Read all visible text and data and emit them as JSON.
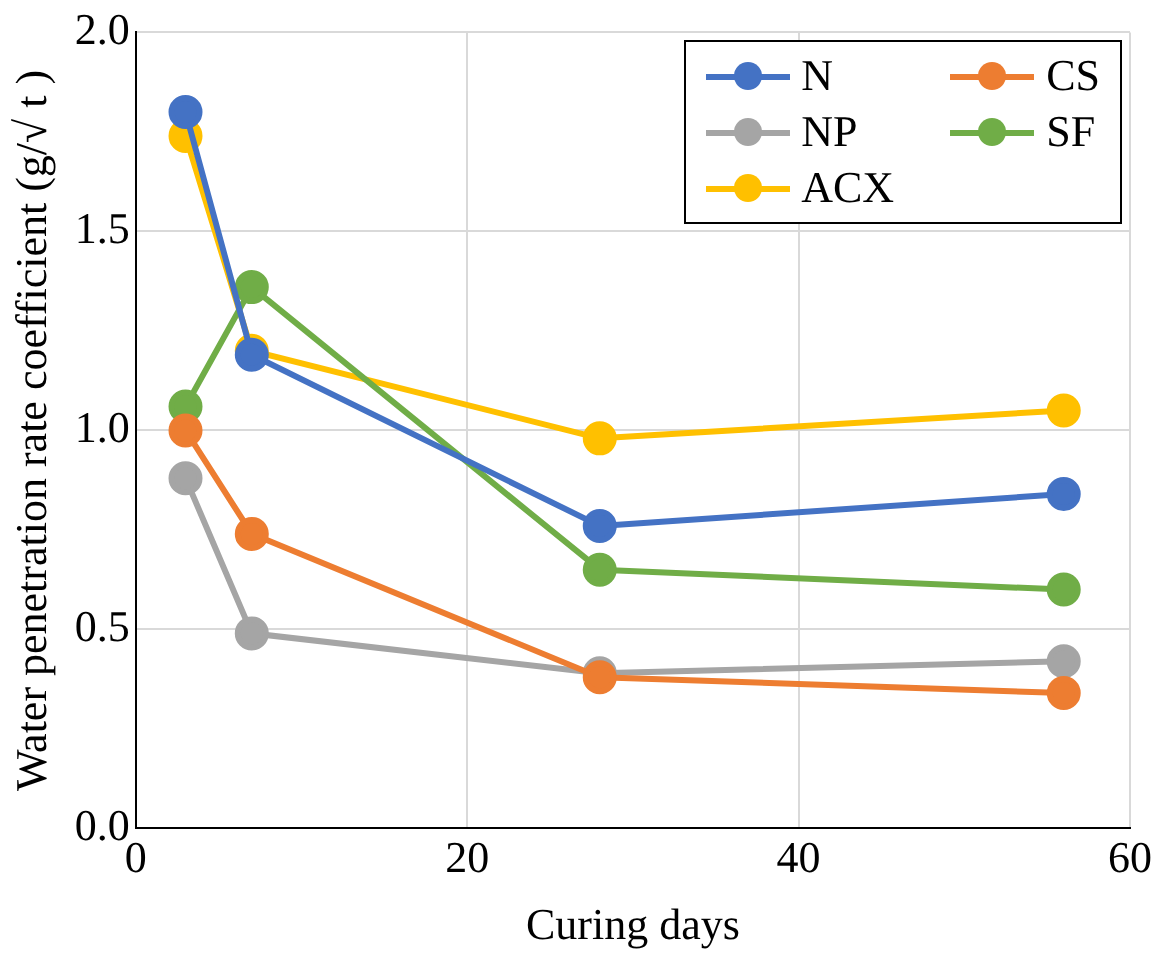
{
  "chart_data": {
    "type": "line",
    "xlabel": "Curing days",
    "ylabel": "Water penetration rate coefficient (g/√ t )",
    "x": [
      3,
      7,
      28,
      56
    ],
    "series": [
      {
        "name": "N",
        "color": "#4472c4",
        "values": [
          1.8,
          1.19,
          0.76,
          0.84
        ]
      },
      {
        "name": "CS",
        "color": "#ed7d31",
        "values": [
          1.0,
          0.74,
          0.38,
          0.34
        ]
      },
      {
        "name": "NP",
        "color": "#a5a5a5",
        "values": [
          0.88,
          0.49,
          0.39,
          0.42
        ]
      },
      {
        "name": "SF",
        "color": "#70ad47",
        "values": [
          1.06,
          1.36,
          0.65,
          0.6
        ]
      },
      {
        "name": "ACX",
        "color": "#ffc000",
        "values": [
          1.74,
          1.2,
          0.98,
          1.05
        ]
      }
    ],
    "xlim": [
      0,
      60
    ],
    "xticks": [
      0,
      20,
      40,
      60
    ],
    "ylim": [
      0,
      2
    ],
    "yticks": [
      {
        "value": 0,
        "label": "0.0"
      },
      {
        "value": 0.5,
        "label": "0.5"
      },
      {
        "value": 1,
        "label": "1.0"
      },
      {
        "value": 1.5,
        "label": "1.5"
      },
      {
        "value": 2,
        "label": "2.0"
      }
    ],
    "grid": true,
    "legend": "top right",
    "marker": "circle",
    "line_style": "solid"
  }
}
